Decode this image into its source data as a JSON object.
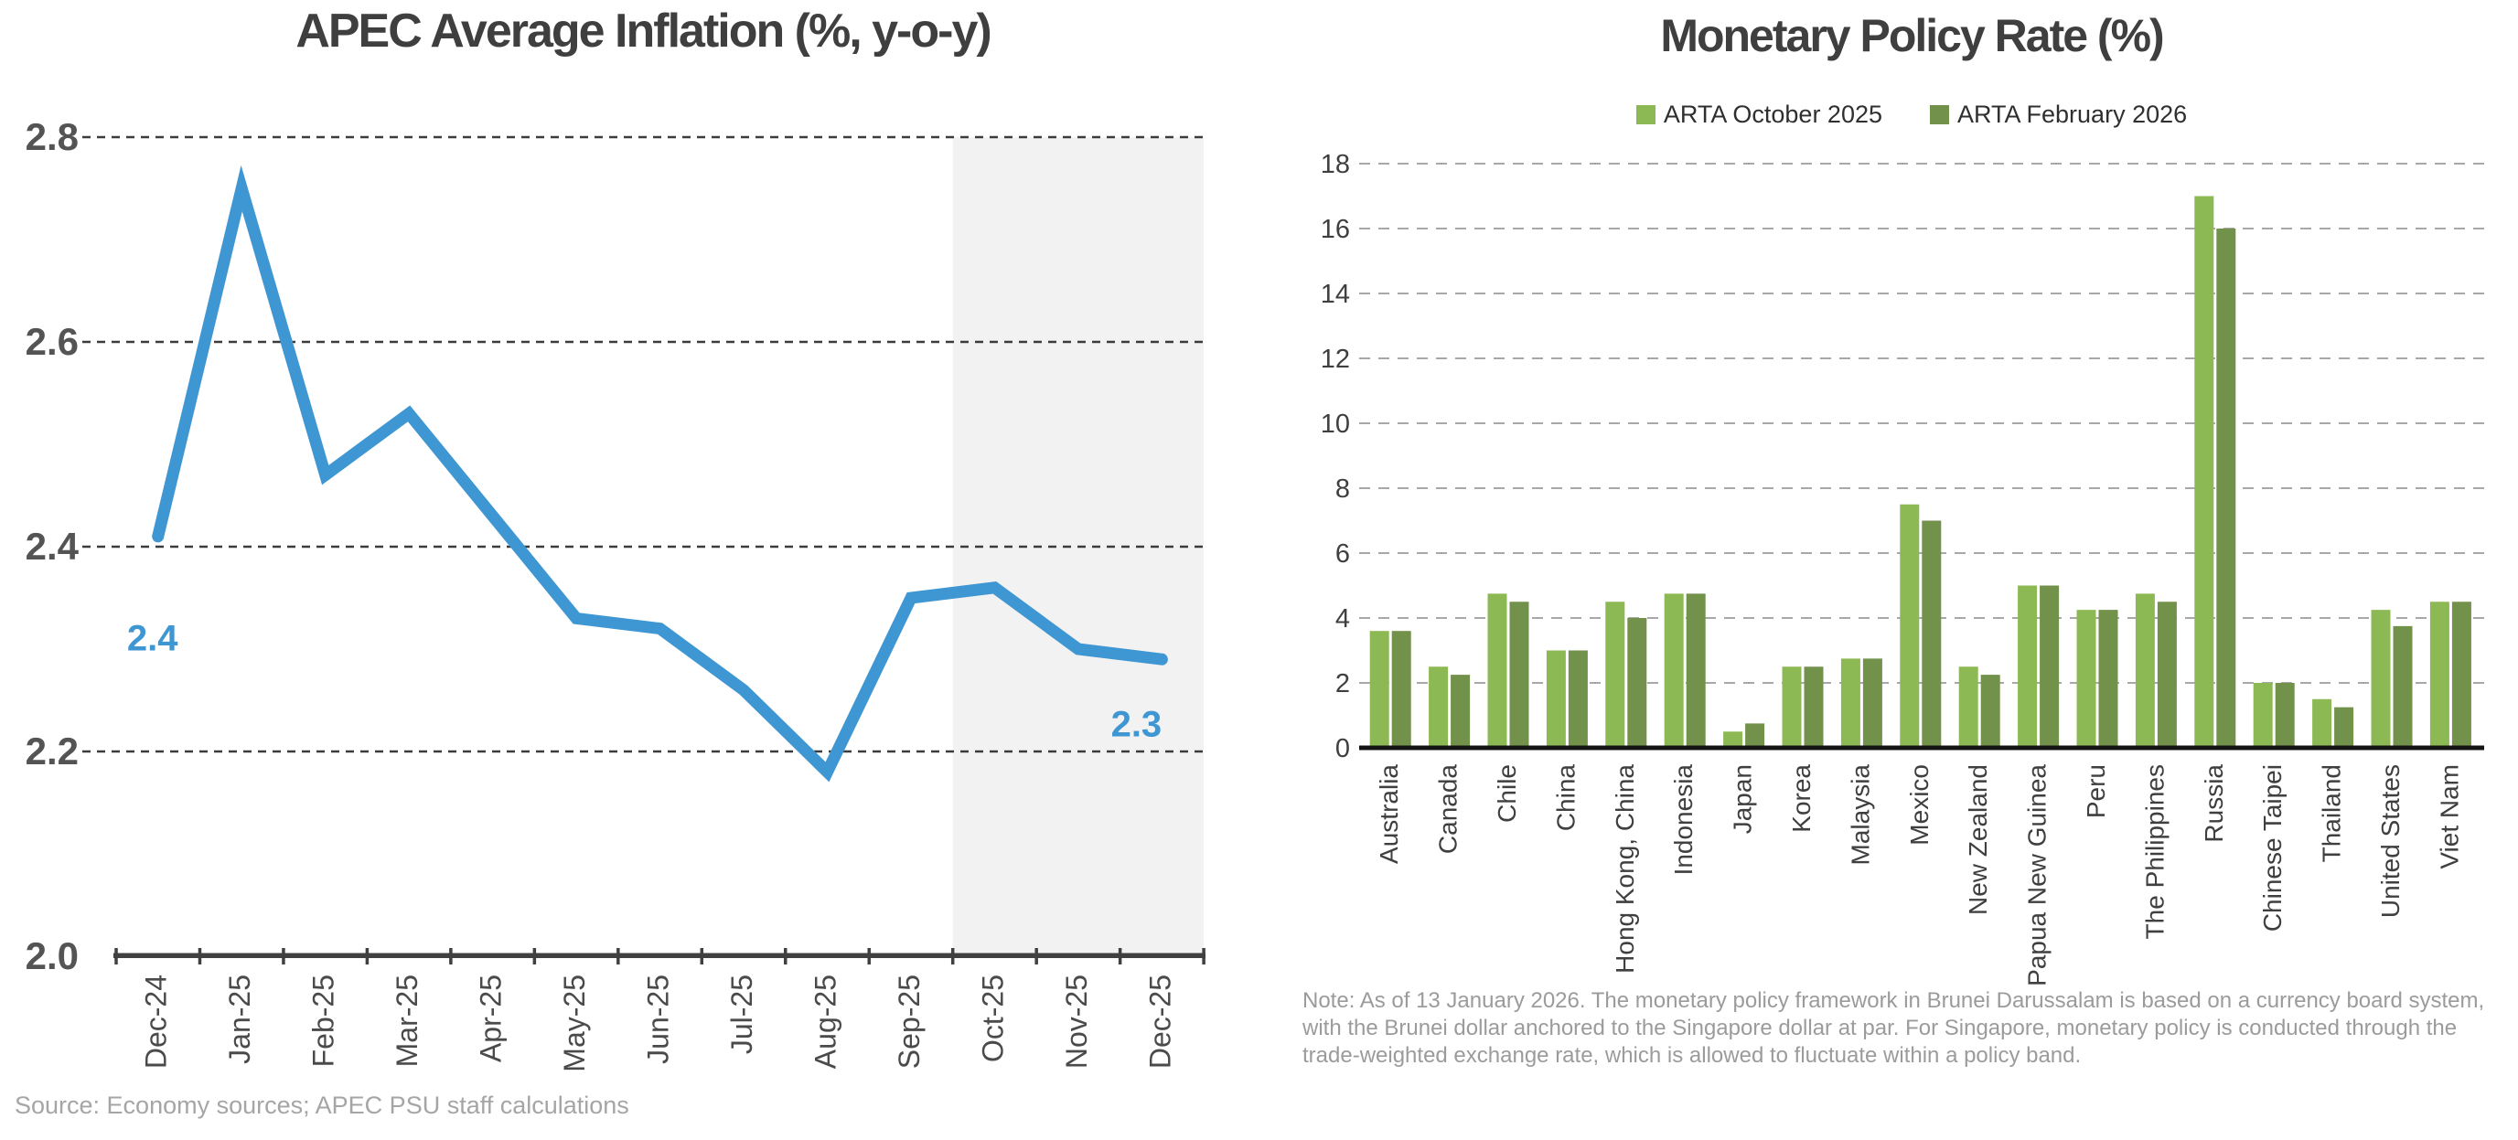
{
  "chart_data": [
    {
      "id": "apec-average-inflation",
      "type": "line",
      "title": "APEC Average Inflation (%, y-o-y)",
      "categories": [
        "Dec-24",
        "Jan-25",
        "Feb-25",
        "Mar-25",
        "Apr-25",
        "May-25",
        "Jun-25",
        "Jul-25",
        "Aug-25",
        "Sep-25",
        "Oct-25",
        "Nov-25",
        "Dec-25"
      ],
      "values": [
        2.41,
        2.75,
        2.47,
        2.53,
        2.43,
        2.33,
        2.32,
        2.26,
        2.18,
        2.35,
        2.36,
        2.3,
        2.29
      ],
      "ylim": [
        2.0,
        2.8
      ],
      "yticks": [
        "2.0",
        "2.2",
        "2.4",
        "2.6",
        "2.8"
      ],
      "grid": "horizontal-dashed",
      "legend_position": "none",
      "line_color": "#3e96d2",
      "forecast_shade": {
        "start_category": "Oct-25",
        "color": "#f2f2f2"
      },
      "point_labels": {
        "first": "2.4",
        "last": "2.3"
      },
      "annotations": {
        "source": "Source: Economy sources; APEC PSU staff calculations"
      }
    },
    {
      "id": "monetary-policy-rate",
      "type": "bar",
      "title": "Monetary Policy Rate (%)",
      "categories": [
        "Australia",
        "Canada",
        "Chile",
        "China",
        "Hong Kong, China",
        "Indonesia",
        "Japan",
        "Korea",
        "Malaysia",
        "Mexico",
        "New Zealand",
        "Papua New Guinea",
        "Peru",
        "The Philippines",
        "Russia",
        "Chinese Taipei",
        "Thailand",
        "United States",
        "Viet Nam"
      ],
      "series": [
        {
          "name": "ARTA October 2025",
          "color": "#8db954",
          "values": [
            3.6,
            2.5,
            4.75,
            3.0,
            4.5,
            4.75,
            0.5,
            2.5,
            2.75,
            7.5,
            2.5,
            5.0,
            4.25,
            4.75,
            17.0,
            2.0,
            1.5,
            4.25,
            4.5
          ]
        },
        {
          "name": "ARTA February 2026",
          "color": "#72914a",
          "values": [
            3.6,
            2.25,
            4.5,
            3.0,
            4.0,
            4.75,
            0.75,
            2.5,
            2.75,
            7.0,
            2.25,
            5.0,
            4.25,
            4.5,
            16.0,
            2.0,
            1.25,
            3.75,
            4.5
          ]
        }
      ],
      "ylim": [
        0,
        18
      ],
      "yticks": [
        0,
        2,
        4,
        6,
        8,
        10,
        12,
        14,
        16,
        18
      ],
      "grid": "horizontal-dashed",
      "legend_position": "top",
      "note": "Note: As of 13 January 2026. The monetary policy framework in Brunei Darussalam is based on a currency board system, with the Brunei dollar anchored to the Singapore dollar at par. For Singapore, monetary policy is conducted through the trade-weighted exchange rate, which is allowed to fluctuate within a policy band."
    }
  ],
  "colors": {
    "background": "#ffffff",
    "title_text": "#3f3f3f",
    "left_axis": "#404040",
    "left_gridlines": "#3b3b3b",
    "left_tick_labels": "#4a4a4a",
    "right_gridlines": "#a8a8a8",
    "right_tick_labels": "#3f3f3f",
    "right_baseline": "#141414",
    "legend_text": "#2f2f2f",
    "note_text": "#9b9b9b",
    "source_text": "#a5a5a5"
  }
}
